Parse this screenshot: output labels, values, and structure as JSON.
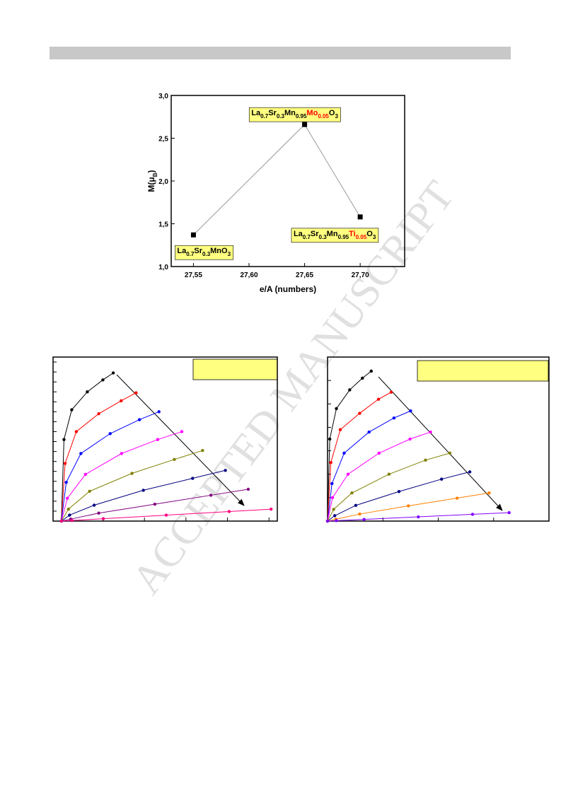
{
  "watermark": "ACCEPTED MANUSCRIPT",
  "chart_data": [
    {
      "type": "line",
      "marker": "square",
      "x": [
        27.55,
        27.65,
        27.7
      ],
      "series": [
        {
          "color": "#000000",
          "line_color": "#999999",
          "values": [
            1.37,
            2.66,
            1.58
          ]
        }
      ],
      "xlim": [
        27.53,
        27.74
      ],
      "xticks": [
        {
          "value": 27.55,
          "label": "27,55"
        },
        {
          "value": 27.6,
          "label": "27,60"
        },
        {
          "value": 27.65,
          "label": "27,65"
        },
        {
          "value": 27.7,
          "label": "27,70"
        }
      ],
      "ylim": [
        1.0,
        3.0
      ],
      "yticks": [
        {
          "value": 1.0,
          "label": "1,0"
        },
        {
          "value": 1.5,
          "label": "1,5"
        },
        {
          "value": 2.0,
          "label": "2,0"
        },
        {
          "value": 2.5,
          "label": "2,5"
        },
        {
          "value": 3.0,
          "label": "3,0"
        }
      ],
      "xlabel": "e/A (numbers)",
      "ylabel": [
        {
          "text": "M(μ"
        },
        {
          "text": "B",
          "sub": true
        },
        {
          "text": ")"
        }
      ],
      "annotations": [
        [
          {
            "text": "La"
          },
          {
            "text": "0.7",
            "sub": true
          },
          {
            "text": "Sr"
          },
          {
            "text": "0.3",
            "sub": true
          },
          {
            "text": "MnO"
          },
          {
            "text": "3",
            "sub": true
          }
        ],
        [
          {
            "text": "La"
          },
          {
            "text": "0.7",
            "sub": true
          },
          {
            "text": "Sr"
          },
          {
            "text": "0.3",
            "sub": true
          },
          {
            "text": "Mn"
          },
          {
            "text": "0.95",
            "sub": true
          },
          {
            "text": "Mo",
            "color": "#ff0000"
          },
          {
            "text": "0.05",
            "sub": true,
            "color": "#ff0000"
          },
          {
            "text": "O"
          },
          {
            "text": "3",
            "sub": true
          }
        ],
        [
          {
            "text": "La"
          },
          {
            "text": "0.7",
            "sub": true
          },
          {
            "text": "Sr"
          },
          {
            "text": "0.3",
            "sub": true
          },
          {
            "text": "Mn"
          },
          {
            "text": "0.95",
            "sub": true
          },
          {
            "text": "Ti",
            "color": "#ff0000"
          },
          {
            "text": "0.05",
            "sub": true,
            "color": "#ff0000"
          },
          {
            "text": "O"
          },
          {
            "text": "3",
            "sub": true
          }
        ]
      ]
    },
    {
      "type": "line",
      "marker": "circle",
      "tick_labels": false,
      "xlim": [
        -4,
        104
      ],
      "xticks": [
        0,
        20,
        40,
        60,
        80,
        100
      ],
      "ylim": [
        0,
        16.5
      ],
      "yticks": [
        0,
        1,
        2,
        3,
        4,
        5,
        6,
        7,
        8,
        9,
        10,
        11,
        12,
        13,
        14,
        15,
        16
      ],
      "series": [
        {
          "color": "#000000",
          "x": [
            0,
            1.25,
            5,
            12.5,
            20,
            25
          ],
          "values": [
            0,
            8.2,
            11.2,
            13.0,
            14.2,
            14.9
          ]
        },
        {
          "color": "#ff0000",
          "x": [
            0,
            1.8,
            7.2,
            18,
            28.8,
            36
          ],
          "values": [
            0,
            5.8,
            9.0,
            10.8,
            12.1,
            12.9
          ]
        },
        {
          "color": "#0000ff",
          "x": [
            0,
            2.35,
            9.4,
            23.5,
            37.6,
            47
          ],
          "values": [
            0,
            3.9,
            6.8,
            8.8,
            10.2,
            11.0
          ]
        },
        {
          "color": "#ff00ff",
          "x": [
            0,
            2.9,
            11.6,
            29,
            46.4,
            58
          ],
          "values": [
            0,
            2.3,
            4.7,
            6.8,
            8.2,
            9.0
          ]
        },
        {
          "color": "#808000",
          "x": [
            0,
            3.4,
            13.6,
            34,
            54.4,
            68
          ],
          "values": [
            0,
            1.2,
            3.0,
            4.8,
            6.2,
            7.1
          ]
        },
        {
          "color": "#000080",
          "x": [
            0,
            3.95,
            15.8,
            39.5,
            63.2,
            79
          ],
          "values": [
            0,
            0.6,
            1.6,
            3.1,
            4.3,
            5.1
          ]
        },
        {
          "color": "#800080",
          "x": [
            0,
            4.5,
            18,
            45,
            72,
            90
          ],
          "values": [
            0,
            0.2,
            0.8,
            1.7,
            2.6,
            3.2
          ]
        },
        {
          "color": "#ff0080",
          "x": [
            0,
            5.05,
            20.2,
            50.5,
            80.8,
            101
          ],
          "values": [
            0,
            0.06,
            0.24,
            0.6,
            0.96,
            1.2
          ]
        }
      ]
    },
    {
      "type": "line",
      "marker": "circle",
      "tick_labels": false,
      "xlim": [
        0,
        4
      ],
      "xticks": [
        0,
        1,
        2,
        3,
        4
      ],
      "ylim": [
        0,
        7
      ],
      "yticks": [
        0,
        1,
        2,
        3,
        4,
        5,
        6,
        7
      ],
      "series": [
        {
          "color": "#000000",
          "x": [
            0,
            0.04,
            0.16,
            0.4,
            0.63,
            0.79
          ],
          "values": [
            0,
            3.5,
            4.8,
            5.6,
            6.1,
            6.4
          ]
        },
        {
          "color": "#ff0000",
          "x": [
            0,
            0.06,
            0.23,
            0.58,
            0.92,
            1.15
          ],
          "values": [
            0,
            2.5,
            3.9,
            4.6,
            5.2,
            5.5
          ]
        },
        {
          "color": "#0000ff",
          "x": [
            0,
            0.08,
            0.3,
            0.75,
            1.2,
            1.5
          ],
          "values": [
            0,
            1.6,
            2.9,
            3.8,
            4.4,
            4.7
          ]
        },
        {
          "color": "#ff00ff",
          "x": [
            0,
            0.09,
            0.37,
            0.93,
            1.49,
            1.86
          ],
          "values": [
            0,
            1.0,
            2.0,
            2.9,
            3.5,
            3.8
          ]
        },
        {
          "color": "#808000",
          "x": [
            0,
            0.11,
            0.44,
            1.11,
            1.77,
            2.21
          ],
          "values": [
            0,
            0.5,
            1.2,
            2.0,
            2.6,
            2.9
          ]
        },
        {
          "color": "#000080",
          "x": [
            0,
            0.13,
            0.51,
            1.29,
            2.06,
            2.57
          ],
          "values": [
            0,
            0.23,
            0.67,
            1.26,
            1.79,
            2.1
          ]
        },
        {
          "color": "#ff8000",
          "x": [
            0,
            0.15,
            0.58,
            1.46,
            2.34,
            2.92
          ],
          "values": [
            0,
            0.08,
            0.3,
            0.65,
            0.98,
            1.2
          ]
        },
        {
          "color": "#8000ff",
          "x": [
            0,
            0.16,
            0.66,
            1.64,
            2.62,
            3.28
          ],
          "values": [
            0,
            0.02,
            0.07,
            0.18,
            0.29,
            0.36
          ]
        }
      ]
    }
  ]
}
